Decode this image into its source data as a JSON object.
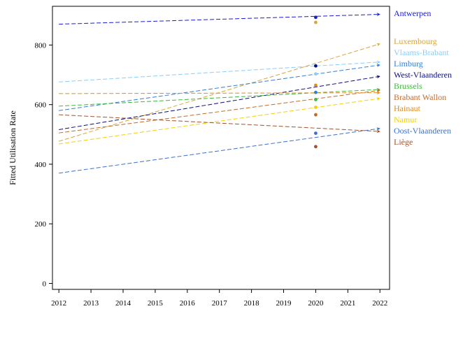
{
  "chart_data": {
    "type": "line",
    "title": "",
    "xlabel": "",
    "ylabel": "Fitted Utilisation Rate",
    "xlim": [
      2011.8,
      2022.3
    ],
    "ylim": [
      -20,
      930
    ],
    "xticks": [
      2012,
      2013,
      2014,
      2015,
      2016,
      2017,
      2018,
      2019,
      2020,
      2021,
      2022
    ],
    "yticks": [
      0,
      200,
      400,
      600,
      800
    ],
    "grid": false,
    "legend": "labels right of plot, ordered by 2022 value",
    "series": [
      {
        "name": "Antwerpen",
        "color": "#1a1adb",
        "x": [
          2012,
          2022
        ],
        "y": [
          870,
          903
        ],
        "points": [
          {
            "x": 2020,
            "y": 893
          }
        ]
      },
      {
        "name": "Luxembourg",
        "color": "#d9a53a",
        "x": [
          2012,
          2022
        ],
        "y": [
          477,
          804
        ],
        "points": [
          {
            "x": 2020,
            "y": 876
          }
        ]
      },
      {
        "name": "Vlaams-Brabant",
        "color": "#87cefa",
        "x": [
          2012,
          2022
        ],
        "y": [
          676,
          743
        ],
        "points": [
          {
            "x": 2020,
            "y": 703
          }
        ]
      },
      {
        "name": "Limburg",
        "color": "#2f7fd6",
        "x": [
          2012,
          2022
        ],
        "y": [
          580,
          733
        ],
        "points": [
          {
            "x": 2020,
            "y": 641
          }
        ]
      },
      {
        "name": "West-Vlaanderen",
        "color": "#0c0c80",
        "x": [
          2012,
          2022
        ],
        "y": [
          516,
          695
        ],
        "points": [
          {
            "x": 2020,
            "y": 730
          }
        ]
      },
      {
        "name": "Brussels",
        "color": "#3cb83c",
        "x": [
          2012,
          2022
        ],
        "y": [
          595,
          651
        ],
        "points": [
          {
            "x": 2020,
            "y": 617
          }
        ]
      },
      {
        "name": "Brabant Wallon",
        "color": "#c46a2a",
        "x": [
          2012,
          2022
        ],
        "y": [
          505,
          648
        ],
        "points": [
          {
            "x": 2020,
            "y": 566
          }
        ]
      },
      {
        "name": "Hainaut",
        "color": "#e08c1a",
        "x": [
          2012,
          2022
        ],
        "y": [
          637,
          640
        ],
        "points": [
          {
            "x": 2020,
            "y": 665
          }
        ]
      },
      {
        "name": "Namur",
        "color": "#f5d000",
        "x": [
          2012,
          2022
        ],
        "y": [
          468,
          621
        ],
        "points": [
          {
            "x": 2020,
            "y": 591
          }
        ]
      },
      {
        "name": "Oost-Vlaanderen",
        "color": "#3a6fd1",
        "x": [
          2012,
          2022
        ],
        "y": [
          370,
          520
        ],
        "points": [
          {
            "x": 2020,
            "y": 504
          }
        ]
      },
      {
        "name": "Liège",
        "color": "#a0522d",
        "x": [
          2012,
          2022
        ],
        "y": [
          566,
          510
        ],
        "points": [
          {
            "x": 2020,
            "y": 459
          }
        ]
      }
    ]
  }
}
